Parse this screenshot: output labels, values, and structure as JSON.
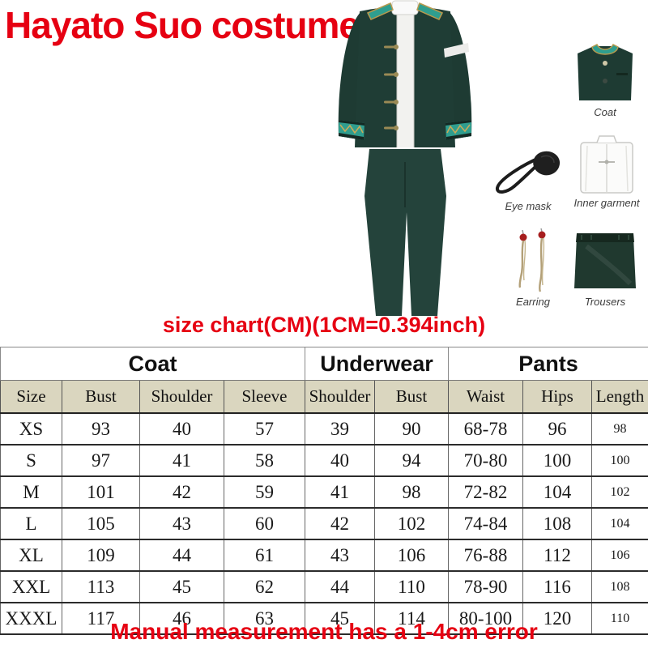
{
  "header": {
    "title": "Hayato Suo costume"
  },
  "items": [
    {
      "name": "coat-thumbnail",
      "label": "Coat"
    },
    {
      "name": "eye-mask-thumbnail",
      "label": "Eye mask"
    },
    {
      "name": "inner-garment-thumbnail",
      "label": "Inner garment"
    },
    {
      "name": "earring-thumbnail",
      "label": "Earring"
    },
    {
      "name": "trousers-thumbnail",
      "label": "Trousers"
    }
  ],
  "size_chart": {
    "heading": "size chart(CM)(1CM=0.394inch)",
    "unit_note": "CM",
    "groups": [
      {
        "label": "Coat",
        "span": 4
      },
      {
        "label": "Underwear",
        "span": 2
      },
      {
        "label": "Pants",
        "span": 3
      }
    ],
    "columns": [
      "Size",
      "Bust",
      "Shoulder",
      "Sleeve",
      "Shoulder",
      "Bust",
      "Waist",
      "Hips",
      "Length"
    ],
    "rows": [
      [
        "XS",
        "93",
        "40",
        "57",
        "39",
        "90",
        "68-78",
        "96",
        "98"
      ],
      [
        "S",
        "97",
        "41",
        "58",
        "40",
        "94",
        "70-80",
        "100",
        "100"
      ],
      [
        "M",
        "101",
        "42",
        "59",
        "41",
        "98",
        "72-82",
        "104",
        "102"
      ],
      [
        "L",
        "105",
        "43",
        "60",
        "42",
        "102",
        "74-84",
        "108",
        "104"
      ],
      [
        "XL",
        "109",
        "44",
        "61",
        "43",
        "106",
        "76-88",
        "112",
        "106"
      ],
      [
        "XXL",
        "113",
        "45",
        "62",
        "44",
        "110",
        "78-90",
        "116",
        "108"
      ],
      [
        "XXXL",
        "117",
        "46",
        "63",
        "45",
        "114",
        "80-100",
        "120",
        "110"
      ]
    ]
  },
  "footnote": {
    "text": "Manual measurement has a 1-4cm error"
  },
  "colors": {
    "accent_red": "#e60012",
    "jacket_green": "#1e3b33",
    "pants_green": "#24433b",
    "trim_teal": "#2f9e8f",
    "trim_gold": "#b89a4e",
    "table_header_bg": "#dad6bf"
  }
}
